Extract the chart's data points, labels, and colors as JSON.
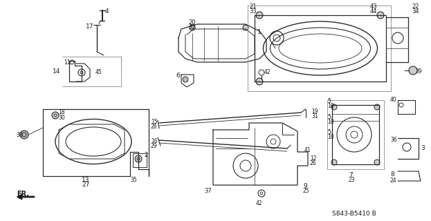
{
  "bg_color": "#ffffff",
  "diagram_code": "S843-B5410",
  "diagram_suffix": "B",
  "line_color": "#2a2a2a",
  "text_color": "#1a1a1a"
}
